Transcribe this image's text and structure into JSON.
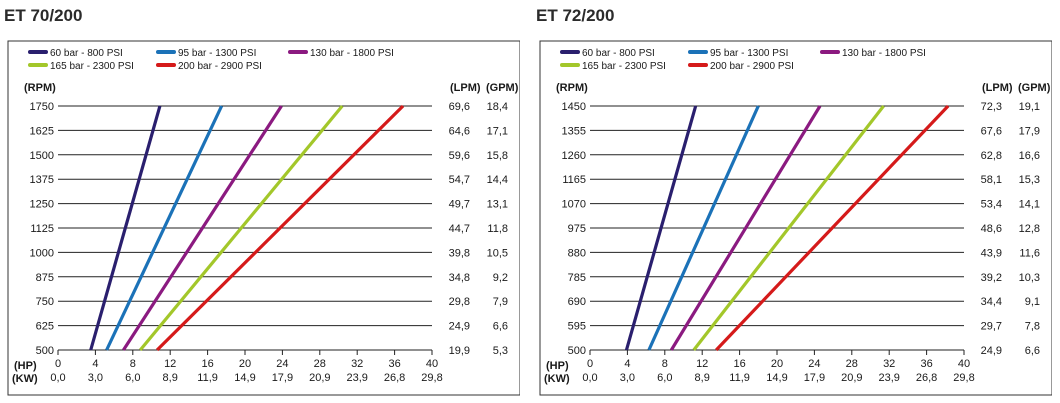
{
  "chart_data": [
    {
      "type": "line",
      "title": "ET 70/200",
      "left_axis_label": "(RPM)",
      "right_axis_labels": [
        "(LPM)",
        "(GPM)"
      ],
      "bottom_axis_labels": [
        "(HP)",
        "(KW)"
      ],
      "rpm_ticks": [
        "500",
        "625",
        "750",
        "875",
        "1000",
        "1125",
        "1250",
        "1375",
        "1500",
        "1625",
        "1750"
      ],
      "lpm_ticks": [
        "19,9",
        "24,9",
        "29,8",
        "34,8",
        "39,8",
        "44,7",
        "49,7",
        "54,7",
        "59,6",
        "64,6",
        "69,6"
      ],
      "gpm_ticks": [
        "5,3",
        "6,6",
        "7,9",
        "9,2",
        "10,5",
        "11,8",
        "13,1",
        "14,4",
        "15,8",
        "17,1",
        "18,4"
      ],
      "hp_ticks": [
        "0",
        "4",
        "8",
        "12",
        "16",
        "20",
        "24",
        "28",
        "32",
        "36",
        "40"
      ],
      "kw_ticks": [
        "0,0",
        "3,0",
        "6,0",
        "8,9",
        "11,9",
        "14,9",
        "17,9",
        "20,9",
        "23,9",
        "26,8",
        "29,8"
      ],
      "xlim": [
        0,
        40
      ],
      "ylim": [
        500,
        1750
      ],
      "grid": "horizontal",
      "legend_position": "top-left",
      "series": [
        {
          "name": "60 bar - 800 PSI",
          "color": "#2a1f6e",
          "x": [
            3.5,
            10.9
          ],
          "y": [
            500,
            1750
          ]
        },
        {
          "name": "95 bar - 1300 PSI",
          "color": "#1b72b8",
          "x": [
            5.2,
            17.5
          ],
          "y": [
            500,
            1750
          ]
        },
        {
          "name": "130 bar - 1800 PSI",
          "color": "#8b1a80",
          "x": [
            7.0,
            23.9
          ],
          "y": [
            500,
            1750
          ]
        },
        {
          "name": "165 bar - 2300 PSI",
          "color": "#a3c72a",
          "x": [
            8.8,
            30.4
          ],
          "y": [
            500,
            1750
          ]
        },
        {
          "name": "200 bar - 2900 PSI",
          "color": "#d51a1a",
          "x": [
            10.6,
            36.9
          ],
          "y": [
            500,
            1750
          ]
        }
      ]
    },
    {
      "type": "line",
      "title": "ET 72/200",
      "left_axis_label": "(RPM)",
      "right_axis_labels": [
        "(LPM)",
        "(GPM)"
      ],
      "bottom_axis_labels": [
        "(HP)",
        "(KW)"
      ],
      "rpm_ticks": [
        "500",
        "595",
        "690",
        "785",
        "880",
        "975",
        "1070",
        "1165",
        "1260",
        "1355",
        "1450"
      ],
      "lpm_ticks": [
        "24,9",
        "29,7",
        "34,4",
        "39,2",
        "43,9",
        "48,6",
        "53,4",
        "58,1",
        "62,8",
        "67,6",
        "72,3"
      ],
      "gpm_ticks": [
        "6,6",
        "7,8",
        "9,1",
        "10,3",
        "11,6",
        "12,8",
        "14,1",
        "15,3",
        "16,6",
        "17,9",
        "19,1"
      ],
      "hp_ticks": [
        "0",
        "4",
        "8",
        "12",
        "16",
        "20",
        "24",
        "28",
        "32",
        "36",
        "40"
      ],
      "kw_ticks": [
        "0,0",
        "3,0",
        "6,0",
        "8,9",
        "11,9",
        "14,9",
        "17,9",
        "20,9",
        "23,9",
        "26,8",
        "29,8"
      ],
      "xlim": [
        0,
        40
      ],
      "ylim": [
        500,
        1450
      ],
      "grid": "horizontal",
      "legend_position": "top-left",
      "series": [
        {
          "name": "60 bar - 800 PSI",
          "color": "#2a1f6e",
          "x": [
            3.9,
            11.3
          ],
          "y": [
            500,
            1450
          ]
        },
        {
          "name": "95 bar - 1300 PSI",
          "color": "#1b72b8",
          "x": [
            6.3,
            18.0
          ],
          "y": [
            500,
            1450
          ]
        },
        {
          "name": "130 bar - 1800 PSI",
          "color": "#8b1a80",
          "x": [
            8.7,
            24.6
          ],
          "y": [
            500,
            1450
          ]
        },
        {
          "name": "165 bar - 2300 PSI",
          "color": "#a3c72a",
          "x": [
            11.1,
            31.4
          ],
          "y": [
            500,
            1450
          ]
        },
        {
          "name": "200 bar - 2900 PSI",
          "color": "#d51a1a",
          "x": [
            13.5,
            38.3
          ],
          "y": [
            500,
            1450
          ]
        }
      ]
    }
  ]
}
